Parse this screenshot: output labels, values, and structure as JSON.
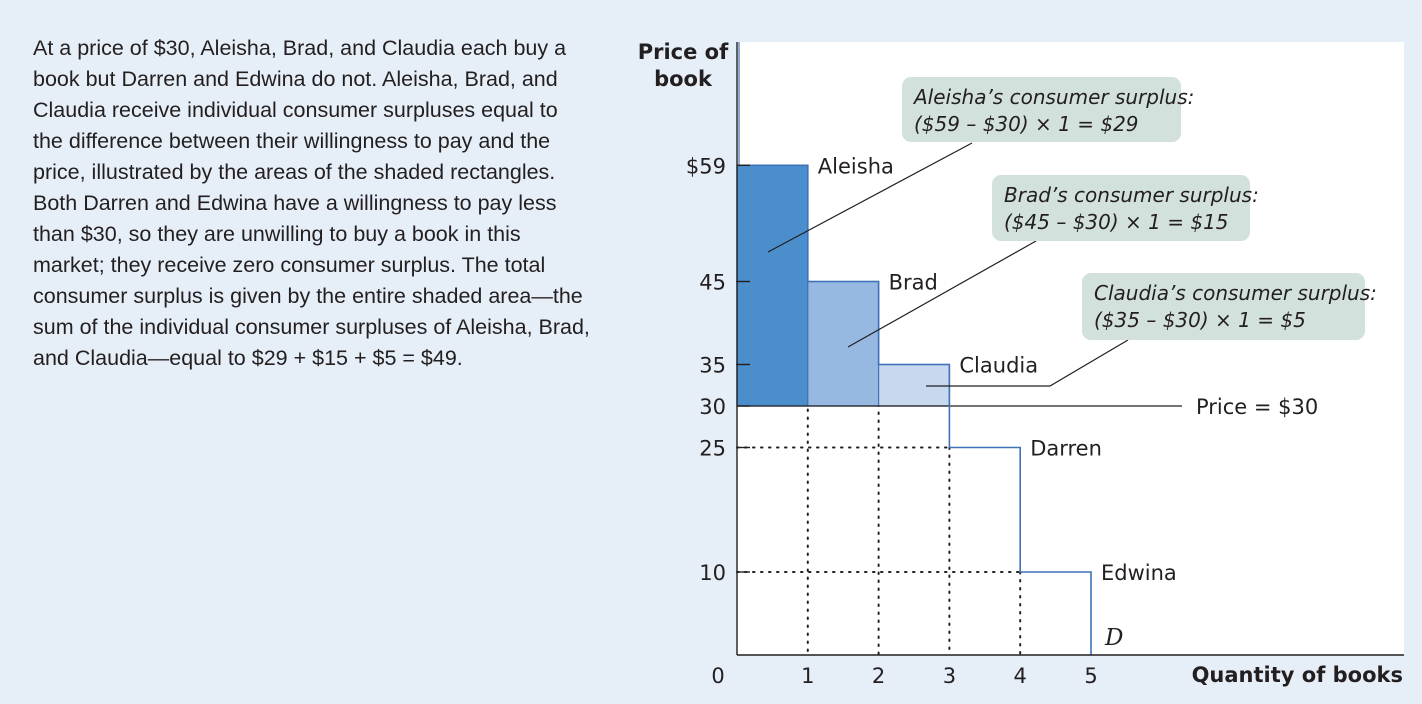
{
  "caption": "At a price of $30, Aleisha, Brad, and Claudia each buy a book but Darren and Edwina do not. Aleisha, Brad, and Claudia receive individual consumer surpluses equal to the difference between their willingness to pay and the price, illustrated by the areas of the shaded rectangles. Both Darren and Edwina have a willingness to pay less than $30, so they are unwilling to buy a book in this market; they receive zero consumer surplus. The total consumer surplus is given by the entire shaded  area—the sum of the individual consumer surpluses of Aleisha, Brad, and Claudia—equal to $29 + $15 + $5 = $49.",
  "colors": {
    "background": "#e6eef7",
    "aleisha_fill": "#4a8fcc",
    "brad_fill": "#97b8e0",
    "claudia_fill": "#c7d8ef",
    "demand_line": "#3f72b8",
    "callout_fill": "#d3e1dd"
  },
  "chart_data": {
    "type": "bar",
    "title": "",
    "ylabel_lines": [
      "Price of",
      "book"
    ],
    "xlabel": "Quantity of books",
    "xlim": [
      0,
      5
    ],
    "ylim": [
      0,
      59
    ],
    "x_ticks": [
      "0",
      "1",
      "2",
      "3",
      "4",
      "5"
    ],
    "y_ticks": [
      {
        "value": 59,
        "label": "$59"
      },
      {
        "value": 45,
        "label": "45"
      },
      {
        "value": 35,
        "label": "35"
      },
      {
        "value": 30,
        "label": "30"
      },
      {
        "value": 25,
        "label": "25"
      },
      {
        "value": 10,
        "label": "10"
      }
    ],
    "demand_curve_label": "D",
    "price": 30,
    "price_label": "Price = $30",
    "consumers": [
      {
        "name": "Aleisha",
        "willingness_to_pay": 59,
        "surplus": 29
      },
      {
        "name": "Brad",
        "willingness_to_pay": 45,
        "surplus": 15
      },
      {
        "name": "Claudia",
        "willingness_to_pay": 35,
        "surplus": 5
      },
      {
        "name": "Darren",
        "willingness_to_pay": 25,
        "surplus": 0
      },
      {
        "name": "Edwina",
        "willingness_to_pay": 10,
        "surplus": 0
      }
    ],
    "callouts": [
      {
        "line1": "Aleisha’s consumer surplus:",
        "line2": "($59 – $30) × 1 = $29"
      },
      {
        "line1": "Brad’s consumer surplus:",
        "line2": "($45 – $30) × 1 = $15"
      },
      {
        "line1": "Claudia’s consumer surplus:",
        "line2": "($35 – $30) × 1 = $5"
      }
    ]
  }
}
